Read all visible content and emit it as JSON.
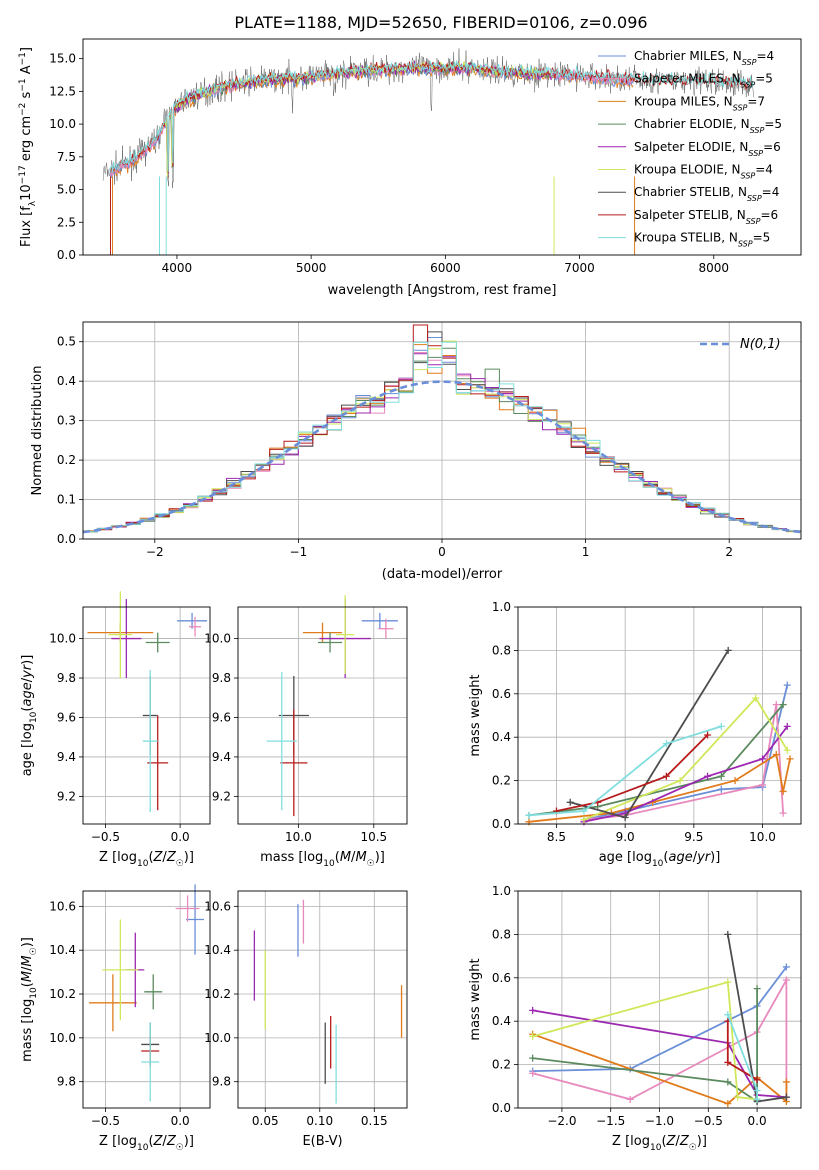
{
  "figure_title": "PLATE=1188, MJD=52650, FIBERID=0106, z=0.096",
  "colors": {
    "Chabrier MILES": "#6a8ed8",
    "Salpeter MILES": "#e889bd",
    "Kroupa MILES": "#e07b1b",
    "Chabrier ELODIE": "#5b8a5f",
    "Salpeter ELODIE": "#9c27b0",
    "Kroupa ELODIE": "#cfe85a",
    "Chabrier STELIB": "#4d4d4d",
    "Salpeter STELIB": "#b71c1c",
    "Kroupa STELIB": "#80dede",
    "normal_curve": "#6a8ed8"
  },
  "chart_data": [
    {
      "id": "spectrum",
      "type": "line",
      "xlabel": "wavelength [Angstrom, rest frame]",
      "ylabel": "Flux [f_λ 10^-17 erg cm^-2 s^-1 A^-1]",
      "xlim": [
        3300,
        8650
      ],
      "ylim": [
        0,
        16.5
      ],
      "xticks": [
        4000,
        5000,
        6000,
        7000,
        8000
      ],
      "yticks": [
        0.0,
        2.5,
        5.0,
        7.5,
        10.0,
        12.5,
        15.0
      ],
      "grid": false,
      "legend_position": "right",
      "legend": [
        {
          "model": "Chabrier MILES",
          "label": "Chabrier MILES, N",
          "n_ssp": "=4"
        },
        {
          "model": "Salpeter MILES",
          "label": "Salpeter MILES, N",
          "n_ssp": "=5"
        },
        {
          "model": "Kroupa MILES",
          "label": "Kroupa MILES, N",
          "n_ssp": "=7"
        },
        {
          "model": "Chabrier ELODIE",
          "label": "Chabrier ELODIE, N",
          "n_ssp": "=5"
        },
        {
          "model": "Salpeter ELODIE",
          "label": "Salpeter ELODIE, N",
          "n_ssp": "=6"
        },
        {
          "model": "Kroupa ELODIE",
          "label": "Kroupa ELODIE, N",
          "n_ssp": "=4"
        },
        {
          "model": "Chabrier STELIB",
          "label": "Chabrier STELIB, N",
          "n_ssp": "=4"
        },
        {
          "model": "Salpeter STELIB",
          "label": "Salpeter STELIB, N",
          "n_ssp": "=6"
        },
        {
          "model": "Kroupa STELIB",
          "label": "Kroupa STELIB, N",
          "n_ssp": "=5"
        }
      ],
      "ssp_subscript": "SSP",
      "continuum": {
        "x": [
          3450,
          3550,
          3700,
          3850,
          3950,
          4050,
          4200,
          4400,
          4600,
          4800,
          5000,
          5200,
          5400,
          5600,
          5800,
          6000,
          6200,
          6400,
          6600,
          6800,
          7000,
          7200,
          7400,
          7600,
          7800,
          8000,
          8200,
          8300
        ],
        "y": [
          6.2,
          6.6,
          7.4,
          8.9,
          10.8,
          11.8,
          12.4,
          13.0,
          13.3,
          13.5,
          13.6,
          13.9,
          14.1,
          14.2,
          14.3,
          14.3,
          14.3,
          14.0,
          13.9,
          13.8,
          13.7,
          13.5,
          13.4,
          13.3,
          13.2,
          13.2,
          13.1,
          13.0
        ]
      }
    },
    {
      "id": "residuals",
      "type": "histogram",
      "xlabel": "(data-model)/error",
      "ylabel": "Normed distribution",
      "xlim": [
        -2.5,
        2.5
      ],
      "ylim": [
        0,
        0.55
      ],
      "xticks": [
        -2,
        -1,
        0,
        1,
        2
      ],
      "yticks": [
        0.0,
        0.1,
        0.2,
        0.3,
        0.4,
        0.5
      ],
      "grid": true,
      "legend_position": "top-right",
      "legend_label": "N(0,1)",
      "bin_width": 0.1
    },
    {
      "id": "age-vs-Z",
      "type": "errorbar",
      "xlabel": "Z [log10(Z/Z☉)]",
      "ylabel": "age [log10(age/yr)]",
      "xlim": [
        -0.65,
        0.2
      ],
      "ylim": [
        9.06,
        10.16
      ],
      "xticks": [
        -0.5,
        0.0
      ],
      "yticks": [
        9.2,
        9.4,
        9.6,
        9.8,
        10.0
      ],
      "grid": true,
      "points": [
        {
          "model": "Chabrier MILES",
          "x": 0.08,
          "xerr": 0.1,
          "y": 10.09,
          "yerr": 0.04
        },
        {
          "model": "Salpeter MILES",
          "x": 0.1,
          "xerr": 0.04,
          "y": 10.06,
          "yerr": 0.05
        },
        {
          "model": "Kroupa MILES",
          "x": -0.4,
          "xerr": 0.22,
          "y": 10.03,
          "yerr": 0.05
        },
        {
          "model": "Chabrier ELODIE",
          "x": -0.15,
          "xerr": 0.08,
          "y": 9.98,
          "yerr": 0.05
        },
        {
          "model": "Salpeter ELODIE",
          "x": -0.36,
          "xerr": 0.1,
          "y": 10.0,
          "yerr": 0.2
        },
        {
          "model": "Kroupa ELODIE",
          "x": -0.4,
          "xerr": 0.08,
          "y": 10.02,
          "yerr": 0.22
        },
        {
          "model": "Chabrier STELIB",
          "x": -0.2,
          "xerr": 0.05,
          "y": 9.61,
          "yerr": 0.2
        },
        {
          "model": "Salpeter STELIB",
          "x": -0.15,
          "xerr": 0.07,
          "y": 9.37,
          "yerr": 0.24
        },
        {
          "model": "Kroupa STELIB",
          "x": -0.2,
          "xerr": 0.05,
          "y": 9.48,
          "yerr": 0.36
        }
      ]
    },
    {
      "id": "age-vs-mass",
      "type": "errorbar",
      "xlabel": "mass [log10(M/M☉)]",
      "ylabel": "",
      "xlim": [
        9.6,
        10.72
      ],
      "ylim": [
        9.06,
        10.16
      ],
      "xticks": [
        10.0,
        10.5
      ],
      "yticks": [
        9.2,
        9.4,
        9.6,
        9.8,
        10.0
      ],
      "grid": true,
      "points": [
        {
          "model": "Chabrier MILES",
          "x": 10.54,
          "xerr": 0.12,
          "y": 10.09,
          "yerr": 0.04
        },
        {
          "model": "Salpeter MILES",
          "x": 10.58,
          "xerr": 0.05,
          "y": 10.05,
          "yerr": 0.05
        },
        {
          "model": "Kroupa MILES",
          "x": 10.16,
          "xerr": 0.13,
          "y": 10.03,
          "yerr": 0.05
        },
        {
          "model": "Chabrier ELODIE",
          "x": 10.21,
          "xerr": 0.08,
          "y": 9.98,
          "yerr": 0.05
        },
        {
          "model": "Salpeter ELODIE",
          "x": 10.31,
          "xerr": 0.17,
          "y": 10.0,
          "yerr": 0.2
        },
        {
          "model": "Kroupa ELODIE",
          "x": 10.31,
          "xerr": 0.06,
          "y": 10.02,
          "yerr": 0.2
        },
        {
          "model": "Chabrier STELIB",
          "x": 9.97,
          "xerr": 0.1,
          "y": 9.61,
          "yerr": 0.2
        },
        {
          "model": "Salpeter STELIB",
          "x": 9.97,
          "xerr": 0.09,
          "y": 9.37,
          "yerr": 0.27
        },
        {
          "model": "Kroupa STELIB",
          "x": 9.89,
          "xerr": 0.1,
          "y": 9.48,
          "yerr": 0.35
        }
      ]
    },
    {
      "id": "weight-vs-age",
      "type": "line",
      "xlabel": "age [log10(age/yr)]",
      "ylabel": "mass weight",
      "xlim": [
        8.22,
        10.28
      ],
      "ylim": [
        0,
        1.0
      ],
      "xticks": [
        8.5,
        9.0,
        9.5,
        10.0
      ],
      "yticks": [
        0.0,
        0.2,
        0.4,
        0.6,
        0.8,
        1.0
      ],
      "grid": true,
      "series": [
        {
          "model": "Chabrier MILES",
          "x": [
            8.7,
            9.0,
            9.7,
            10.0,
            10.18
          ],
          "y": [
            0.02,
            0.06,
            0.16,
            0.17,
            0.64
          ]
        },
        {
          "model": "Salpeter MILES",
          "x": [
            8.7,
            9.0,
            10.0,
            10.1,
            10.15
          ],
          "y": [
            0.02,
            0.04,
            0.18,
            0.55,
            0.05
          ]
        },
        {
          "model": "Kroupa MILES",
          "x": [
            8.3,
            8.9,
            9.2,
            9.8,
            10.1,
            10.15,
            10.2
          ],
          "y": [
            0.01,
            0.05,
            0.1,
            0.2,
            0.32,
            0.15,
            0.3
          ]
        },
        {
          "model": "Chabrier ELODIE",
          "x": [
            8.3,
            8.8,
            9.7,
            10.15
          ],
          "y": [
            0.04,
            0.08,
            0.22,
            0.55
          ]
        },
        {
          "model": "Salpeter ELODIE",
          "x": [
            8.7,
            9.0,
            9.6,
            10.0,
            10.18
          ],
          "y": [
            0.01,
            0.05,
            0.22,
            0.3,
            0.45
          ]
        },
        {
          "model": "Kroupa ELODIE",
          "x": [
            8.7,
            9.4,
            9.95,
            10.18
          ],
          "y": [
            0.02,
            0.2,
            0.58,
            0.34
          ]
        },
        {
          "model": "Chabrier STELIB",
          "x": [
            8.6,
            9.0,
            9.75
          ],
          "y": [
            0.1,
            0.03,
            0.8
          ]
        },
        {
          "model": "Salpeter STELIB",
          "x": [
            8.5,
            8.8,
            9.3,
            9.6
          ],
          "y": [
            0.06,
            0.1,
            0.22,
            0.41
          ]
        },
        {
          "model": "Kroupa STELIB",
          "x": [
            8.3,
            8.7,
            9.3,
            9.7
          ],
          "y": [
            0.04,
            0.06,
            0.37,
            0.45
          ]
        }
      ]
    },
    {
      "id": "mass-vs-Z",
      "type": "errorbar",
      "xlabel": "Z [log10(Z/Z☉)]",
      "ylabel": "mass [log10(M/M☉)]",
      "xlim": [
        -0.65,
        0.2
      ],
      "ylim": [
        9.68,
        10.67
      ],
      "xticks": [
        -0.5,
        0.0
      ],
      "yticks": [
        9.8,
        10.0,
        10.2,
        10.4,
        10.6
      ],
      "grid": true,
      "points": [
        {
          "model": "Chabrier MILES",
          "x": 0.1,
          "xerr": 0.06,
          "y": 10.54,
          "yerr": 0.16
        },
        {
          "model": "Salpeter MILES",
          "x": 0.05,
          "xerr": 0.08,
          "y": 10.59,
          "yerr": 0.06
        },
        {
          "model": "Kroupa MILES",
          "x": -0.45,
          "xerr": 0.16,
          "y": 10.16,
          "yerr": 0.13
        },
        {
          "model": "Chabrier ELODIE",
          "x": -0.18,
          "xerr": 0.06,
          "y": 10.21,
          "yerr": 0.08
        },
        {
          "model": "Salpeter ELODIE",
          "x": -0.3,
          "xerr": 0.06,
          "y": 10.31,
          "yerr": 0.17
        },
        {
          "model": "Kroupa ELODIE",
          "x": -0.4,
          "xerr": 0.12,
          "y": 10.31,
          "yerr": 0.23
        },
        {
          "model": "Chabrier STELIB",
          "x": -0.2,
          "xerr": 0.06,
          "y": 9.97,
          "yerr": 0.1
        },
        {
          "model": "Salpeter STELIB",
          "x": -0.2,
          "xerr": 0.06,
          "y": 9.94,
          "yerr": 0.07
        },
        {
          "model": "Kroupa STELIB",
          "x": -0.2,
          "xerr": 0.06,
          "y": 9.89,
          "yerr": 0.18
        }
      ]
    },
    {
      "id": "mass-vs-ebv",
      "type": "errorbar",
      "xlabel": "E(B-V)",
      "ylabel": "",
      "xlim": [
        0.025,
        0.18
      ],
      "ylim": [
        9.68,
        10.67
      ],
      "xticks": [
        0.05,
        0.1,
        0.15
      ],
      "yticks": [
        9.8,
        10.0,
        10.2,
        10.4,
        10.6
      ],
      "grid": true,
      "points": [
        {
          "model": "Chabrier MILES",
          "x": 0.08,
          "y": 10.49,
          "yerr": 0.12
        },
        {
          "model": "Salpeter MILES",
          "x": 0.085,
          "y": 10.53,
          "yerr": 0.1
        },
        {
          "model": "Kroupa MILES",
          "x": 0.175,
          "y": 10.12,
          "yerr": 0.12
        },
        {
          "model": "Salpeter ELODIE",
          "x": 0.04,
          "y": 10.33,
          "yerr": 0.16
        },
        {
          "model": "Kroupa ELODIE",
          "x": 0.05,
          "y": 10.22,
          "yerr": 0.18
        },
        {
          "model": "Chabrier STELIB",
          "x": 0.105,
          "y": 9.93,
          "yerr": 0.14
        },
        {
          "model": "Salpeter STELIB",
          "x": 0.11,
          "y": 9.98,
          "yerr": 0.12
        },
        {
          "model": "Kroupa STELIB",
          "x": 0.115,
          "y": 9.88,
          "yerr": 0.18
        }
      ]
    },
    {
      "id": "weight-vs-Z",
      "type": "line",
      "xlabel": "Z [log10(Z/Z☉)]",
      "ylabel": "mass weight",
      "xlim": [
        -2.45,
        0.45
      ],
      "ylim": [
        0,
        1.0
      ],
      "xticks": [
        -2.0,
        -1.5,
        -1.0,
        -0.5,
        0.0
      ],
      "yticks": [
        0.0,
        0.2,
        0.4,
        0.6,
        0.8,
        1.0
      ],
      "grid": true,
      "series": [
        {
          "model": "Chabrier MILES",
          "x": [
            -2.3,
            -1.3,
            0.0,
            0.3
          ],
          "y": [
            0.17,
            0.18,
            0.47,
            0.65
          ]
        },
        {
          "model": "Salpeter MILES",
          "x": [
            -2.3,
            -1.3,
            0.0,
            0.3,
            0.3
          ],
          "y": [
            0.16,
            0.04,
            0.35,
            0.59,
            0.05
          ]
        },
        {
          "model": "Kroupa MILES",
          "x": [
            -2.3,
            -0.3,
            0.0,
            0.3,
            0.3
          ],
          "y": [
            0.34,
            0.02,
            0.14,
            0.03,
            0.12
          ]
        },
        {
          "model": "Chabrier ELODIE",
          "x": [
            -2.3,
            -0.3,
            0.0,
            0.0
          ],
          "y": [
            0.23,
            0.12,
            0.03,
            0.55
          ]
        },
        {
          "model": "Salpeter ELODIE",
          "x": [
            -2.3,
            -0.3,
            0.0,
            0.3
          ],
          "y": [
            0.45,
            0.3,
            0.06,
            0.05
          ]
        },
        {
          "model": "Kroupa ELODIE",
          "x": [
            -2.3,
            -0.3,
            -0.2,
            0.0
          ],
          "y": [
            0.33,
            0.58,
            0.05,
            0.04
          ]
        },
        {
          "model": "Chabrier STELIB",
          "x": [
            -0.3,
            0.0,
            0.3
          ],
          "y": [
            0.8,
            0.03,
            0.05
          ]
        },
        {
          "model": "Salpeter STELIB",
          "x": [
            -0.3,
            -0.3,
            0.0
          ],
          "y": [
            0.4,
            0.21,
            0.13
          ]
        },
        {
          "model": "Kroupa STELIB",
          "x": [
            -0.3,
            0.0,
            0.0
          ],
          "y": [
            0.43,
            0.08,
            0.04
          ]
        }
      ]
    }
  ]
}
